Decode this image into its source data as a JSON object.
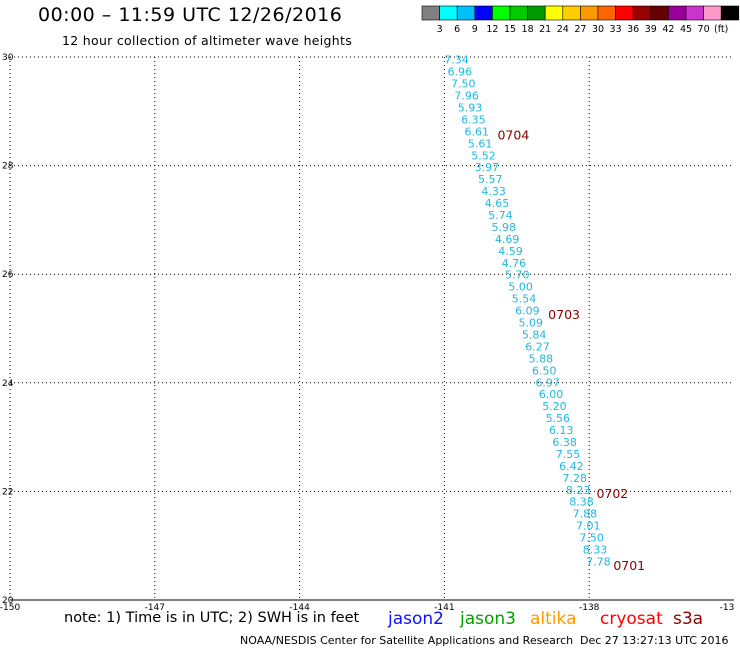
{
  "header": {
    "title": "00:00 – 11:59 UTC 12/26/2016",
    "subtitle": "12 hour collection of altimeter wave heights"
  },
  "colorbar": {
    "colors": [
      "#808080",
      "#00ffff",
      "#00bfff",
      "#0000ff",
      "#00ff00",
      "#00cc00",
      "#009900",
      "#ffff00",
      "#ffcc00",
      "#ff9900",
      "#ff6600",
      "#ff0000",
      "#990000",
      "#660000",
      "#990099",
      "#cc33cc",
      "#ff99cc",
      "#000000"
    ],
    "labels": [
      "3",
      "6",
      "9",
      "12",
      "15",
      "18",
      "21",
      "24",
      "27",
      "30",
      "33",
      "36",
      "39",
      "42",
      "45",
      "70",
      "(ft)"
    ]
  },
  "map": {
    "lon_ticks": [
      "-150",
      "-147",
      "-144",
      "-141",
      "-138",
      "-13"
    ],
    "lat_ticks": [
      "30",
      "28",
      "26",
      "24",
      "22",
      "20"
    ],
    "lon_range": [
      -150,
      -135
    ],
    "lat_range": [
      20,
      30
    ]
  },
  "track": {
    "color": "#20b8e0",
    "points": [
      {
        "lat": 29.95,
        "lon": -140.75,
        "swh": "7.34"
      },
      {
        "lat": 29.73,
        "lon": -140.68,
        "swh": "6.96"
      },
      {
        "lat": 29.51,
        "lon": -140.61,
        "swh": "7.50"
      },
      {
        "lat": 29.29,
        "lon": -140.54,
        "swh": "7.96"
      },
      {
        "lat": 29.07,
        "lon": -140.47,
        "swh": "5.93"
      },
      {
        "lat": 28.85,
        "lon": -140.4,
        "swh": "6.35"
      },
      {
        "lat": 28.63,
        "lon": -140.33,
        "swh": "6.61"
      },
      {
        "lat": 28.41,
        "lon": -140.26,
        "swh": "5.61"
      },
      {
        "lat": 28.19,
        "lon": -140.19,
        "swh": "5.52"
      },
      {
        "lat": 27.97,
        "lon": -140.12,
        "swh": "3.97"
      },
      {
        "lat": 27.75,
        "lon": -140.05,
        "swh": "5.57"
      },
      {
        "lat": 27.53,
        "lon": -139.98,
        "swh": "4.33"
      },
      {
        "lat": 27.31,
        "lon": -139.91,
        "swh": "4.65"
      },
      {
        "lat": 27.09,
        "lon": -139.84,
        "swh": "5.74"
      },
      {
        "lat": 26.87,
        "lon": -139.77,
        "swh": "5.98"
      },
      {
        "lat": 26.65,
        "lon": -139.7,
        "swh": "4.69"
      },
      {
        "lat": 26.43,
        "lon": -139.63,
        "swh": "4.59"
      },
      {
        "lat": 26.21,
        "lon": -139.56,
        "swh": "4.76"
      },
      {
        "lat": 25.99,
        "lon": -139.49,
        "swh": "5.70"
      },
      {
        "lat": 25.77,
        "lon": -139.42,
        "swh": "5.00"
      },
      {
        "lat": 25.55,
        "lon": -139.35,
        "swh": "5.54"
      },
      {
        "lat": 25.33,
        "lon": -139.28,
        "swh": "6.09"
      },
      {
        "lat": 25.11,
        "lon": -139.21,
        "swh": "5.09"
      },
      {
        "lat": 24.89,
        "lon": -139.14,
        "swh": "5.84"
      },
      {
        "lat": 24.67,
        "lon": -139.07,
        "swh": "6.27"
      },
      {
        "lat": 24.45,
        "lon": -139.0,
        "swh": "5.88"
      },
      {
        "lat": 24.23,
        "lon": -138.93,
        "swh": "6.50"
      },
      {
        "lat": 24.01,
        "lon": -138.86,
        "swh": "6.97"
      },
      {
        "lat": 23.79,
        "lon": -138.79,
        "swh": "6.00"
      },
      {
        "lat": 23.57,
        "lon": -138.72,
        "swh": "5.20"
      },
      {
        "lat": 23.35,
        "lon": -138.65,
        "swh": "5.56"
      },
      {
        "lat": 23.13,
        "lon": -138.58,
        "swh": "6.13"
      },
      {
        "lat": 22.91,
        "lon": -138.51,
        "swh": "6.38"
      },
      {
        "lat": 22.69,
        "lon": -138.44,
        "swh": "7.55"
      },
      {
        "lat": 22.47,
        "lon": -138.37,
        "swh": "6.42"
      },
      {
        "lat": 22.25,
        "lon": -138.3,
        "swh": "7.28"
      },
      {
        "lat": 22.03,
        "lon": -138.23,
        "swh": "8.23"
      },
      {
        "lat": 21.81,
        "lon": -138.16,
        "swh": "8.38"
      },
      {
        "lat": 21.59,
        "lon": -138.09,
        "swh": "7.88"
      },
      {
        "lat": 21.37,
        "lon": -138.02,
        "swh": "7.01"
      },
      {
        "lat": 21.15,
        "lon": -137.95,
        "swh": "7.50"
      },
      {
        "lat": 20.93,
        "lon": -137.88,
        "swh": "8.33"
      },
      {
        "lat": 20.71,
        "lon": -137.81,
        "swh": "7.78"
      }
    ],
    "time_labels": [
      {
        "lat": 28.55,
        "lon": -139.9,
        "text": "0704"
      },
      {
        "lat": 25.25,
        "lon": -138.85,
        "text": "0703"
      },
      {
        "lat": 21.95,
        "lon": -137.85,
        "text": "0702"
      },
      {
        "lat": 20.63,
        "lon": -137.5,
        "text": "0701"
      }
    ],
    "time_color": "#8b0000"
  },
  "footer": {
    "note": "note: 1) Time is in UTC; 2) SWH is in feet",
    "satellites": [
      {
        "name": "jason2",
        "color": "#1010ff"
      },
      {
        "name": "jason3",
        "color": "#00a000"
      },
      {
        "name": "altika",
        "color": "#ff9900"
      },
      {
        "name": "cryosat",
        "color": "#ff0000"
      },
      {
        "name": "s3a",
        "color": "#8b0000"
      }
    ],
    "credit": "NOAA/NESDIS Center for Satellite Applications and Research",
    "timestamp": "Dec 27 13:27:13 UTC 2016"
  }
}
